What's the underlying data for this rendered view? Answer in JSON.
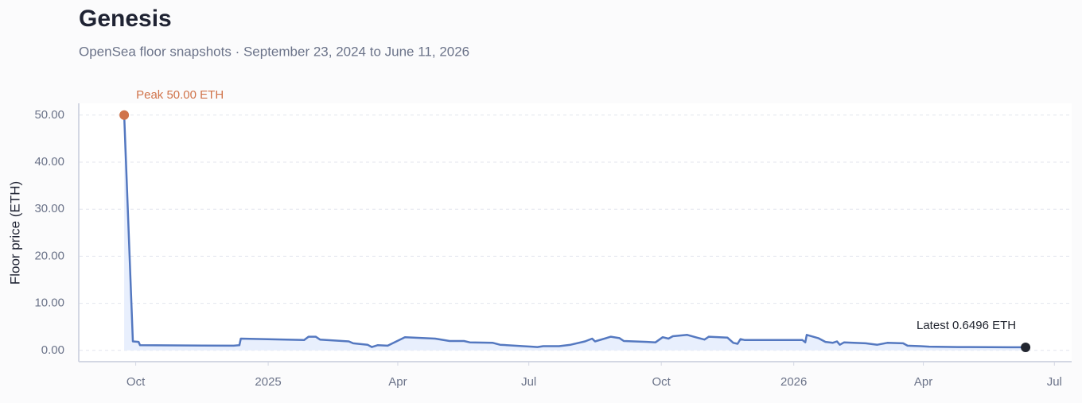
{
  "chart_data": {
    "type": "line",
    "title": "Genesis",
    "subtitle": "OpenSea floor snapshots · September 23, 2024 to June 11, 2026",
    "y_label": "Floor price (ETH)",
    "annotations": {
      "peak": "Peak 50.00 ETH",
      "latest": "Latest 0.6496 ETH"
    },
    "x": [
      "2024-09-23",
      "2024-09-29",
      "2024-10-03",
      "2024-10-04",
      "2024-12-08",
      "2024-12-12",
      "2024-12-13",
      "2025-01-26",
      "2025-01-29",
      "2025-02-03",
      "2025-02-06",
      "2025-02-26",
      "2025-03-01",
      "2025-03-11",
      "2025-03-14",
      "2025-03-18",
      "2025-03-25",
      "2025-04-06",
      "2025-04-27",
      "2025-05-07",
      "2025-05-17",
      "2025-05-21",
      "2025-06-06",
      "2025-06-11",
      "2025-06-27",
      "2025-07-03",
      "2025-07-07",
      "2025-07-11",
      "2025-07-22",
      "2025-07-30",
      "2025-08-09",
      "2025-08-14",
      "2025-08-16",
      "2025-08-27",
      "2025-09-02",
      "2025-09-05",
      "2025-09-21",
      "2025-09-27",
      "2025-10-02",
      "2025-10-06",
      "2025-10-09",
      "2025-10-19",
      "2025-10-26",
      "2025-10-31",
      "2025-11-03",
      "2025-11-16",
      "2025-11-20",
      "2025-11-23",
      "2025-11-25",
      "2025-11-28",
      "2026-01-07",
      "2026-01-09",
      "2026-01-10",
      "2026-01-18",
      "2026-01-23",
      "2026-01-28",
      "2026-01-31",
      "2026-02-02",
      "2026-02-05",
      "2026-02-20",
      "2026-02-28",
      "2026-03-07",
      "2026-03-18",
      "2026-03-21",
      "2026-03-30",
      "2026-04-05",
      "2026-04-25",
      "2026-05-03",
      "2026-06-11"
    ],
    "series": [
      {
        "name": "Floor price",
        "color": "#5478c0",
        "fill": "#e8effd",
        "values": [
          50,
          1.9,
          1.8,
          1.1,
          1.0,
          1.1,
          2.5,
          2.2,
          2.9,
          2.9,
          2.3,
          1.9,
          1.5,
          1.2,
          0.7,
          1.1,
          1.0,
          2.8,
          2.5,
          2.0,
          2.0,
          1.7,
          1.6,
          1.2,
          0.9,
          0.8,
          0.7,
          0.9,
          0.9,
          1.2,
          1.9,
          2.5,
          1.9,
          2.9,
          2.6,
          2.0,
          1.8,
          1.7,
          2.8,
          2.5,
          3.0,
          3.3,
          2.7,
          2.3,
          2.9,
          2.7,
          1.6,
          1.4,
          2.4,
          2.2,
          2.2,
          1.7,
          3.3,
          2.6,
          1.8,
          1.6,
          1.9,
          1.2,
          1.7,
          1.5,
          1.2,
          1.6,
          1.5,
          1.0,
          0.9,
          0.8,
          0.7,
          0.7,
          0.6496
        ]
      }
    ],
    "peak_color": "#d0734a",
    "latest_color": "#222630",
    "xlim": [
      "2024-08-23",
      "2026-07-13"
    ],
    "xticks": [
      {
        "value": "2024-10-01",
        "label": "Oct"
      },
      {
        "value": "2025-01-01",
        "label": "2025"
      },
      {
        "value": "2025-04-01",
        "label": "Apr"
      },
      {
        "value": "2025-07-01",
        "label": "Jul"
      },
      {
        "value": "2025-10-01",
        "label": "Oct"
      },
      {
        "value": "2026-01-01",
        "label": "2026"
      },
      {
        "value": "2026-04-01",
        "label": "Apr"
      },
      {
        "value": "2026-07-01",
        "label": "Jul"
      }
    ],
    "ylim": [
      -2.4,
      52.5
    ],
    "yticks": [
      {
        "value": 0,
        "label": "0.00"
      },
      {
        "value": 10,
        "label": "10.00"
      },
      {
        "value": 20,
        "label": "20.00"
      },
      {
        "value": 30,
        "label": "30.00"
      },
      {
        "value": 40,
        "label": "40.00"
      },
      {
        "value": 50,
        "label": "50.00"
      }
    ],
    "grid": true
  }
}
